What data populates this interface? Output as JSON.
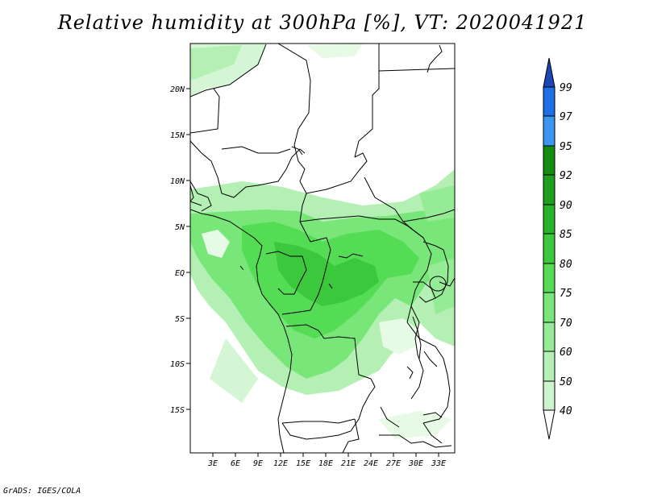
{
  "title": "Relative humidity at 300hPa [%], VT: 2020041921",
  "footer": "GrADS: IGES/COLA",
  "map": {
    "lat_labels": [
      "20N",
      "15N",
      "10N",
      "5N",
      "EQ",
      "5S",
      "10S",
      "15S"
    ],
    "lon_labels": [
      "3E",
      "6E",
      "9E",
      "12E",
      "15E",
      "18E",
      "21E",
      "24E",
      "27E",
      "30E",
      "33E"
    ]
  },
  "colorbar": {
    "labels": [
      "40",
      "50",
      "60",
      "70",
      "75",
      "80",
      "85",
      "90",
      "92",
      "95",
      "97",
      "99"
    ],
    "colors": {
      "white": "#ffffff",
      "c40": "#e6fae6",
      "c50": "#cdf5cd",
      "c60": "#b4f0b4",
      "c70": "#96eb96",
      "c75": "#78e678",
      "c80": "#55dc55",
      "c85": "#3cc83c",
      "c90": "#28b428",
      "c92": "#1ea01e",
      "c95": "#148c14",
      "c97": "#3c96f0",
      "c99": "#1e6ee6",
      "top": "#1e46b4"
    }
  }
}
